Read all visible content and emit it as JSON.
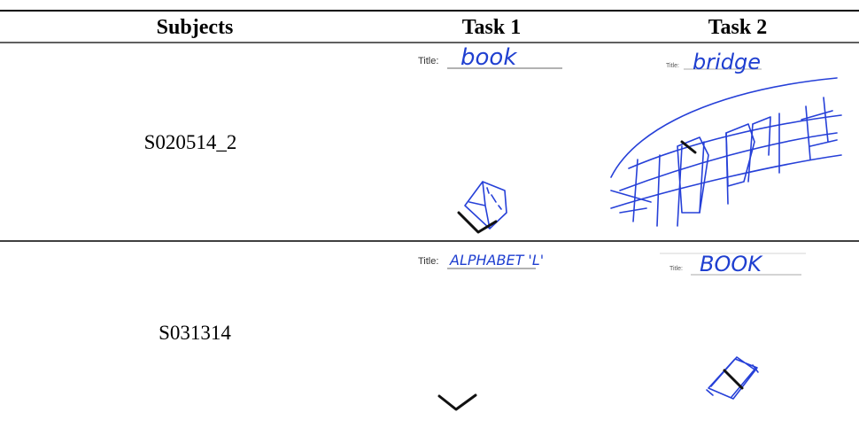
{
  "table": {
    "header": [
      "Subjects",
      "Task 1",
      "Task 2"
    ],
    "rows": [
      {
        "subject": "S020514_2",
        "task1": {
          "title_label": "Title:",
          "handwriting": "book"
        },
        "task2": {
          "title_label": "Title:",
          "handwriting": "bridge"
        }
      },
      {
        "subject": "S031314",
        "task1": {
          "title_label": "Title:",
          "handwriting": "ALPHABET 'L'"
        },
        "task2": {
          "title_label": "Title:",
          "handwriting": "BOOK"
        }
      }
    ]
  }
}
